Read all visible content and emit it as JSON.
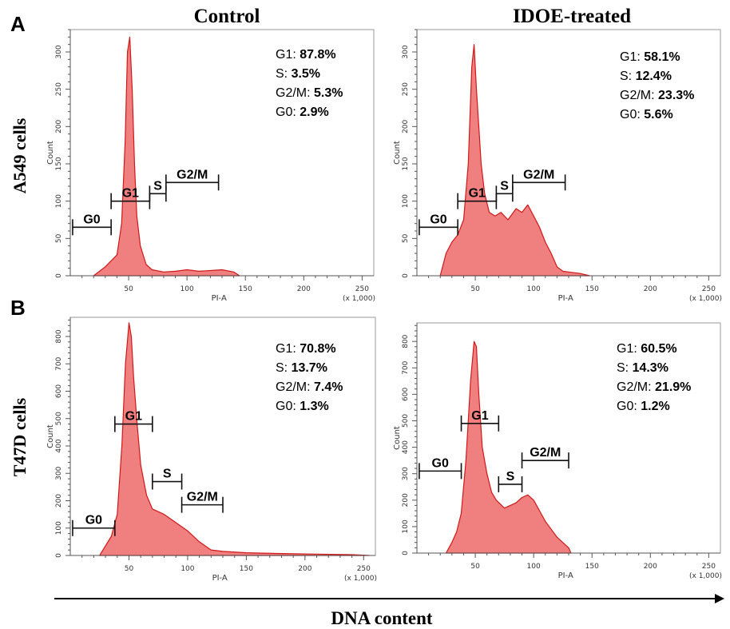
{
  "figure": {
    "panel_a": "A",
    "panel_b": "B",
    "col_control": "Control",
    "col_treated": "IDOE-treated",
    "row_a": "A549 cells",
    "row_b": "T47D cells",
    "x_title": "DNA content"
  },
  "colors": {
    "fill": "#f08080",
    "stroke": "#d01818",
    "axis": "#555555",
    "gate": "#111111"
  },
  "chart_data": [
    {
      "type": "area",
      "panel": "A549 Control",
      "xlabel": "PI-A",
      "xscale_label": "(x 1,000)",
      "ylabel": "Count",
      "xlim": [
        0,
        260
      ],
      "ylim": [
        0,
        330
      ],
      "xticks": [
        50,
        100,
        150,
        200,
        250
      ],
      "yticks": [
        0,
        50,
        100,
        150,
        200,
        250,
        300
      ],
      "x": [
        20,
        30,
        40,
        44,
        47,
        49,
        51,
        53,
        55,
        57,
        60,
        65,
        70,
        80,
        90,
        100,
        110,
        120,
        130,
        140,
        145
      ],
      "y": [
        0,
        12,
        28,
        70,
        180,
        300,
        320,
        250,
        150,
        80,
        40,
        15,
        8,
        5,
        6,
        8,
        6,
        7,
        8,
        5,
        0
      ],
      "gates": [
        {
          "name": "G0",
          "x1": 2,
          "x2": 35,
          "y": 65
        },
        {
          "name": "G1",
          "x1": 35,
          "x2": 68,
          "y": 100
        },
        {
          "name": "S",
          "x1": 68,
          "x2": 82,
          "y": 110
        },
        {
          "name": "G2/M",
          "x1": 82,
          "x2": 127,
          "y": 125
        }
      ],
      "stats": [
        {
          "label": "G1",
          "value": "87.8%"
        },
        {
          "label": "S",
          "value": "3.5%"
        },
        {
          "label": "G2/M",
          "value": "5.3%"
        },
        {
          "label": "G0",
          "value": "2.9%"
        }
      ]
    },
    {
      "type": "area",
      "panel": "A549 IDOE-treated",
      "xlabel": "PI-A",
      "xscale_label": "(x 1,000)",
      "ylabel": "Count",
      "xlim": [
        0,
        260
      ],
      "ylim": [
        0,
        330
      ],
      "xticks": [
        50,
        100,
        150,
        200,
        250
      ],
      "yticks": [
        0,
        50,
        100,
        150,
        200,
        250,
        300
      ],
      "x": [
        20,
        25,
        30,
        35,
        40,
        44,
        47,
        49,
        51,
        53,
        55,
        58,
        62,
        67,
        72,
        78,
        85,
        90,
        95,
        100,
        105,
        110,
        115,
        120,
        125,
        130,
        140,
        148
      ],
      "y": [
        0,
        30,
        45,
        55,
        75,
        150,
        280,
        310,
        250,
        200,
        150,
        110,
        85,
        80,
        85,
        75,
        90,
        85,
        95,
        80,
        65,
        45,
        30,
        12,
        6,
        5,
        3,
        0
      ],
      "gates": [
        {
          "name": "G0",
          "x1": 2,
          "x2": 35,
          "y": 65
        },
        {
          "name": "G1",
          "x1": 35,
          "x2": 68,
          "y": 100
        },
        {
          "name": "S",
          "x1": 68,
          "x2": 82,
          "y": 110
        },
        {
          "name": "G2/M",
          "x1": 82,
          "x2": 127,
          "y": 125
        }
      ],
      "stats": [
        {
          "label": "G1",
          "value": "58.1%"
        },
        {
          "label": "S",
          "value": "12.4%"
        },
        {
          "label": "G2/M",
          "value": "23.3%"
        },
        {
          "label": "G0",
          "value": "5.6%"
        }
      ]
    },
    {
      "type": "area",
      "panel": "T47D Control",
      "xlabel": "PI-A",
      "xscale_label": "(x 1,000)",
      "ylabel": "Count",
      "xlim": [
        0,
        260
      ],
      "ylim": [
        0,
        870
      ],
      "xticks": [
        50,
        100,
        150,
        200,
        250
      ],
      "yticks": [
        0,
        100,
        200,
        300,
        400,
        500,
        600,
        700,
        800
      ],
      "x": [
        25,
        35,
        40,
        44,
        47,
        50,
        52,
        54,
        57,
        60,
        65,
        70,
        80,
        90,
        100,
        110,
        120,
        130,
        150,
        180,
        210,
        240,
        255
      ],
      "y": [
        0,
        70,
        150,
        400,
        700,
        850,
        800,
        650,
        480,
        330,
        220,
        170,
        150,
        120,
        90,
        50,
        20,
        15,
        10,
        7,
        5,
        3,
        0
      ],
      "gates": [
        {
          "name": "G0",
          "x1": 2,
          "x2": 38,
          "y": 100
        },
        {
          "name": "G1",
          "x1": 38,
          "x2": 70,
          "y": 480
        },
        {
          "name": "S",
          "x1": 70,
          "x2": 95,
          "y": 270
        },
        {
          "name": "G2/M",
          "x1": 95,
          "x2": 130,
          "y": 185
        }
      ],
      "stats": [
        {
          "label": "G1",
          "value": "70.8%"
        },
        {
          "label": "S",
          "value": "13.7%"
        },
        {
          "label": "G2/M",
          "value": "7.4%"
        },
        {
          "label": "G0",
          "value": "1.3%"
        }
      ]
    },
    {
      "type": "area",
      "panel": "T47D IDOE-treated",
      "xlabel": "PI-A",
      "xscale_label": "(x 1,000)",
      "ylabel": "Count",
      "xlim": [
        0,
        260
      ],
      "ylim": [
        0,
        870
      ],
      "xticks": [
        50,
        100,
        150,
        200,
        250
      ],
      "yticks": [
        0,
        100,
        200,
        300,
        400,
        500,
        600,
        700,
        800
      ],
      "x": [
        25,
        30,
        34,
        38,
        42,
        46,
        49,
        51,
        53,
        56,
        60,
        64,
        68,
        75,
        85,
        90,
        95,
        100,
        105,
        110,
        115,
        120,
        125,
        130,
        132
      ],
      "y": [
        0,
        40,
        80,
        150,
        350,
        650,
        800,
        780,
        600,
        400,
        300,
        230,
        200,
        170,
        190,
        210,
        220,
        200,
        160,
        120,
        90,
        60,
        40,
        20,
        0
      ],
      "gates": [
        {
          "name": "G0",
          "x1": 2,
          "x2": 38,
          "y": 310
        },
        {
          "name": "G1",
          "x1": 38,
          "x2": 70,
          "y": 490
        },
        {
          "name": "S",
          "x1": 70,
          "x2": 90,
          "y": 260
        },
        {
          "name": "G2/M",
          "x1": 90,
          "x2": 130,
          "y": 350
        }
      ],
      "stats": [
        {
          "label": "G1",
          "value": "60.5%"
        },
        {
          "label": "S",
          "value": "14.3%"
        },
        {
          "label": "G2/M",
          "value": "21.9%"
        },
        {
          "label": "G0",
          "value": "1.2%"
        }
      ]
    }
  ]
}
